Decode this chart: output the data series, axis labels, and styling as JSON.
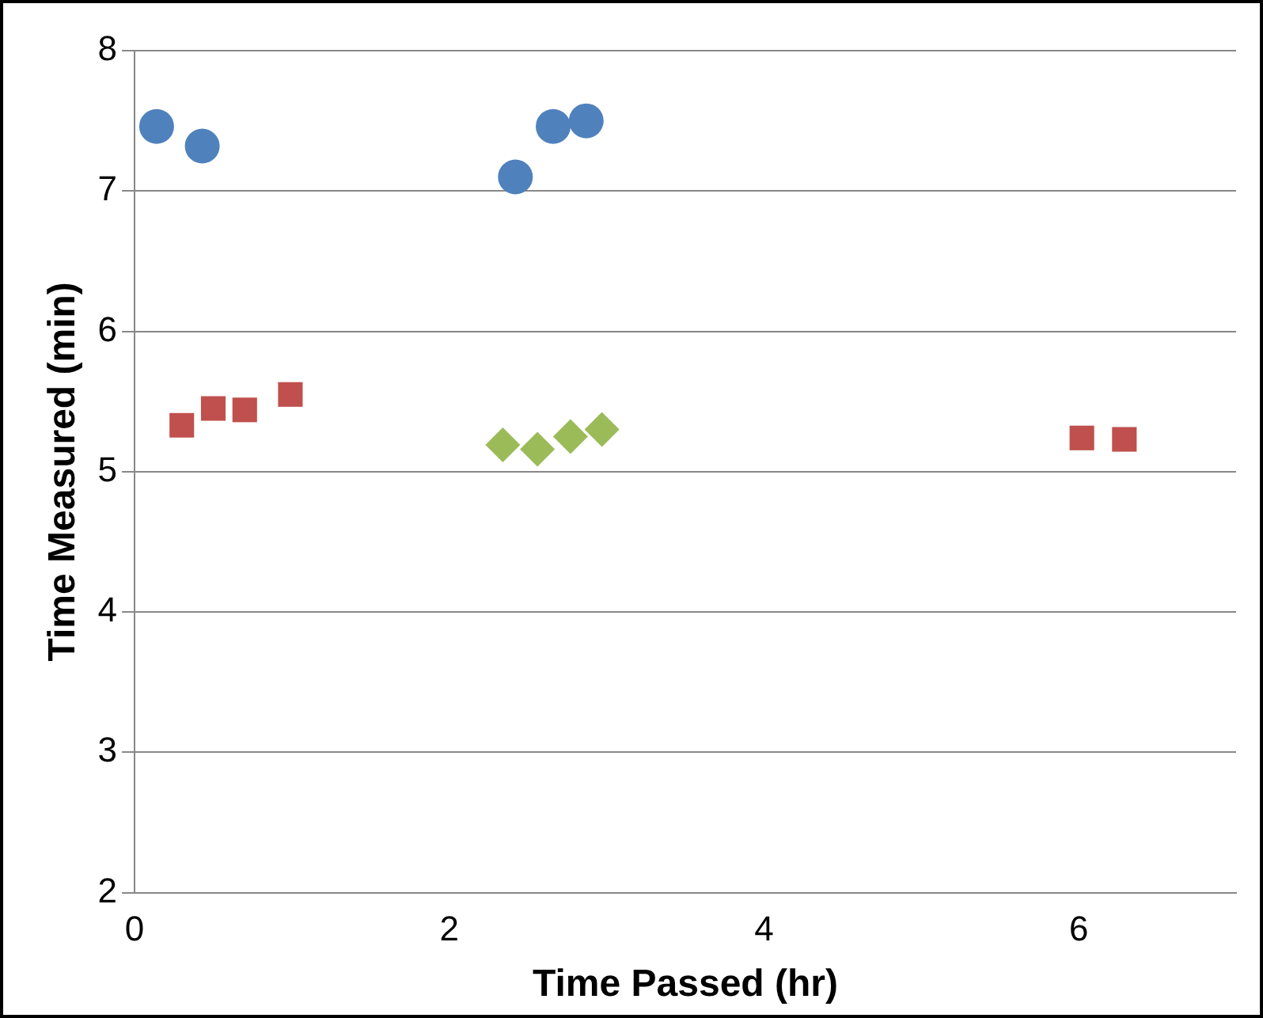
{
  "chart_data": {
    "type": "scatter",
    "xlabel": "Time Passed (hr)",
    "ylabel": "Time Measured (min)",
    "xlim": [
      0,
      7
    ],
    "xticks": [
      0,
      2,
      4,
      6
    ],
    "ylim": [
      2,
      8
    ],
    "yticks": [
      2,
      3,
      4,
      5,
      6,
      7,
      8
    ],
    "grid": "y",
    "legend": false,
    "series": [
      {
        "color": "#4f81bd",
        "marker": "circle",
        "x": [
          0.14,
          0.43,
          2.42,
          2.66,
          2.87
        ],
        "values": [
          7.46,
          7.32,
          7.1,
          7.46,
          7.5
        ]
      },
      {
        "color": "#c0504d",
        "marker": "square",
        "x": [
          0.3,
          0.5,
          0.7,
          0.99,
          6.02,
          6.29
        ],
        "values": [
          5.33,
          5.45,
          5.44,
          5.55,
          5.24,
          5.23
        ]
      },
      {
        "color": "#9bbb59",
        "marker": "diamond",
        "x": [
          2.34,
          2.56,
          2.77,
          2.97
        ],
        "values": [
          5.19,
          5.16,
          5.25,
          5.3
        ]
      }
    ]
  }
}
